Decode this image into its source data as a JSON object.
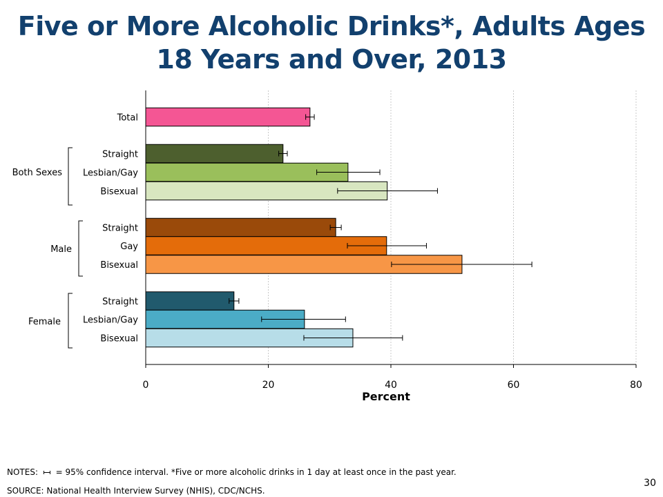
{
  "title_line1": "Five or More Alcoholic Drinks*, Adults Ages",
  "title_line2": "18 Years and Over, 2013",
  "notes_prefix": "NOTES:",
  "notes_suffix": "= 95% confidence interval. *Five or more alcoholic drinks in 1 day at least once in the past year.",
  "source": "SOURCE: National Health Interview Survey (NHIS), CDC/NCHS.",
  "page_number": "30",
  "chart_data": {
    "type": "bar",
    "orientation": "horizontal",
    "xlabel": "Percent",
    "xlim": [
      0,
      80
    ],
    "xticks": [
      0,
      20,
      40,
      60,
      80
    ],
    "grid": "vertical dotted",
    "bars": [
      {
        "group": "",
        "label": "Total",
        "value": 26.8,
        "ci": [
          26.1,
          27.5
        ],
        "color": "#f45694"
      },
      {
        "group": "Both Sexes",
        "label": "Straight",
        "value": 22.4,
        "ci": [
          21.7,
          23.1
        ],
        "color": "#4d5f2e"
      },
      {
        "group": "Both Sexes",
        "label": "Lesbian/Gay",
        "value": 33.0,
        "ci": [
          27.9,
          38.2
        ],
        "color": "#9abf5b"
      },
      {
        "group": "Both Sexes",
        "label": "Bisexual",
        "value": 39.4,
        "ci": [
          31.3,
          47.6
        ],
        "color": "#d8e6c0"
      },
      {
        "group": "Male",
        "label": "Straight",
        "value": 31.0,
        "ci": [
          30.1,
          31.9
        ],
        "color": "#9a4a0a"
      },
      {
        "group": "Male",
        "label": "Gay",
        "value": 39.3,
        "ci": [
          32.9,
          45.8
        ],
        "color": "#e46c0a"
      },
      {
        "group": "Male",
        "label": "Bisexual",
        "value": 51.6,
        "ci": [
          40.1,
          63.0
        ],
        "color": "#f79646"
      },
      {
        "group": "Female",
        "label": "Straight",
        "value": 14.4,
        "ci": [
          13.6,
          15.2
        ],
        "color": "#215a6d"
      },
      {
        "group": "Female",
        "label": "Lesbian/Gay",
        "value": 25.9,
        "ci": [
          18.9,
          32.6
        ],
        "color": "#4bacc6"
      },
      {
        "group": "Female",
        "label": "Bisexual",
        "value": 33.8,
        "ci": [
          25.8,
          41.9
        ],
        "color": "#b7dde8"
      }
    ],
    "groups": [
      "Both Sexes",
      "Male",
      "Female"
    ]
  }
}
